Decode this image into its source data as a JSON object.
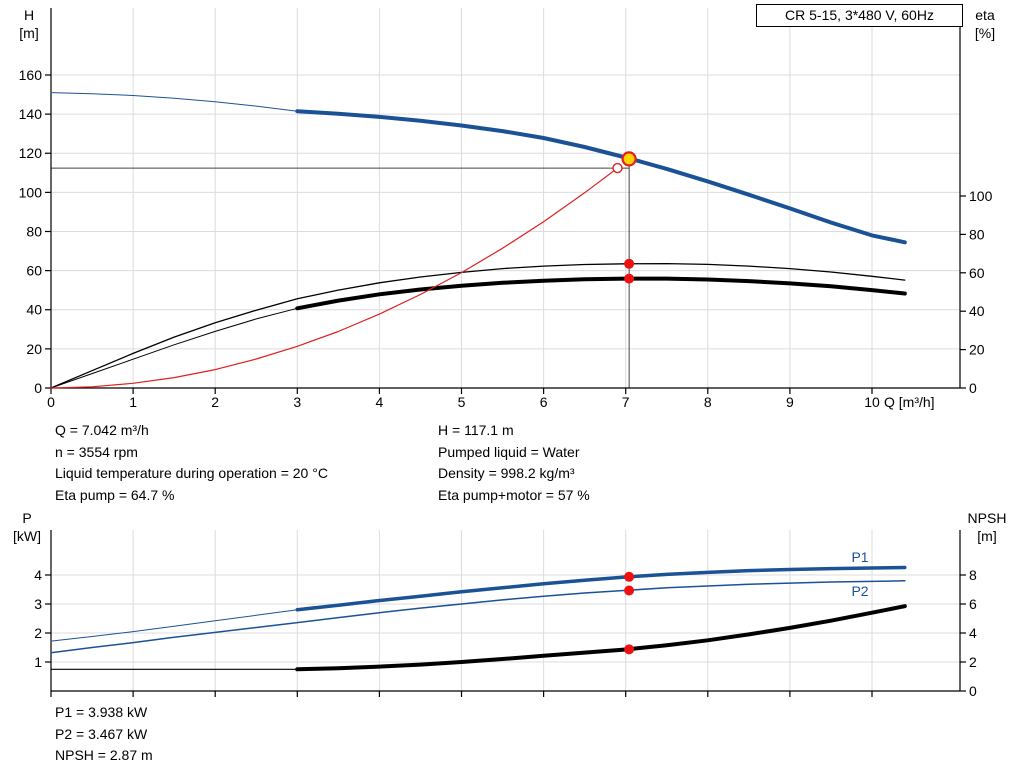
{
  "colors": {
    "blue": "#1b5296",
    "black": "#000000",
    "red": "#e02020",
    "marker_red": "#ee1111",
    "duty_fill": "#ffd400",
    "grid": "#dcdcdc",
    "axis": "#000000",
    "ref_line": "#444444"
  },
  "info": {
    "top_left": [
      "Q = 7.042 m³/h",
      "n = 3554 rpm",
      "Liquid temperature during operation = 20 °C",
      "Eta pump = 64.7 %"
    ],
    "top_right": [
      "H = 117.1 m",
      "Pumped liquid = Water",
      "Density = 998.2 kg/m³",
      "Eta pump+motor = 57 %"
    ],
    "bottom": [
      "P1 = 3.938 kW",
      "P2 = 3.467 kW",
      "NPSH = 2.87 m"
    ]
  },
  "chart_data": [
    {
      "type": "line",
      "title": "CR 5-15, 3*480 V, 60Hz",
      "x_axis": {
        "label": "Q [m³/h]",
        "min": 0,
        "max": 11.1,
        "ticks": [
          0,
          1,
          2,
          3,
          4,
          5,
          6,
          7,
          8,
          9,
          10
        ],
        "show_tick_labels": true
      },
      "y_left": {
        "label": [
          "H",
          "[m]"
        ],
        "min": 0,
        "max": 194,
        "ticks": [
          0,
          20,
          40,
          60,
          80,
          100,
          120,
          140,
          160
        ]
      },
      "y_right": {
        "label": [
          "eta",
          "[%]"
        ],
        "min": 0,
        "max": 198,
        "ticks": [
          0,
          20,
          40,
          60,
          80,
          100
        ]
      },
      "series": [
        {
          "name": "head-curve-lead-in",
          "axis": "left",
          "color": "blue",
          "width": 1,
          "points": [
            [
              0,
              151
            ],
            [
              0.5,
              150.4
            ],
            [
              1,
              149.5
            ],
            [
              1.5,
              148.1
            ],
            [
              2,
              146.3
            ],
            [
              2.5,
              144.1
            ],
            [
              3,
              141.5
            ]
          ]
        },
        {
          "name": "head-curve",
          "axis": "left",
          "color": "blue",
          "width": 4,
          "points": [
            [
              3,
              141.5
            ],
            [
              3.5,
              140.2
            ],
            [
              4,
              138.6
            ],
            [
              4.5,
              136.6
            ],
            [
              5,
              134.2
            ],
            [
              5.5,
              131.3
            ],
            [
              6,
              127.8
            ],
            [
              6.5,
              123.2
            ],
            [
              7,
              117.8
            ],
            [
              7.5,
              112
            ],
            [
              8,
              105.6
            ],
            [
              8.5,
              98.8
            ],
            [
              9,
              91.8
            ],
            [
              9.5,
              84.6
            ],
            [
              10,
              78
            ],
            [
              10.4,
              74.5
            ]
          ]
        },
        {
          "name": "eta-pump-curve",
          "axis": "right",
          "color": "black",
          "width": 1.3,
          "points": [
            [
              0,
              0
            ],
            [
              0.5,
              9
            ],
            [
              1,
              18
            ],
            [
              1.5,
              26.5
            ],
            [
              2,
              34
            ],
            [
              2.5,
              40.5
            ],
            [
              3,
              46.5
            ],
            [
              3.5,
              51
            ],
            [
              4,
              54.8
            ],
            [
              4.5,
              57.8
            ],
            [
              5,
              60.2
            ],
            [
              5.5,
              62.2
            ],
            [
              6,
              63.5
            ],
            [
              6.5,
              64.3
            ],
            [
              7,
              64.7
            ],
            [
              7.5,
              64.8
            ],
            [
              8,
              64.4
            ],
            [
              8.5,
              63.5
            ],
            [
              9,
              62.2
            ],
            [
              9.5,
              60.4
            ],
            [
              10,
              58.2
            ],
            [
              10.4,
              56.2
            ]
          ]
        },
        {
          "name": "eta-pump-motor-lead-in",
          "axis": "right",
          "color": "black",
          "width": 1,
          "points": [
            [
              0,
              0
            ],
            [
              0.5,
              7.5
            ],
            [
              1,
              15
            ],
            [
              1.5,
              22.5
            ],
            [
              2,
              29.5
            ],
            [
              2.5,
              36
            ],
            [
              3,
              41.5
            ]
          ]
        },
        {
          "name": "eta-pump-motor-curve",
          "axis": "right",
          "color": "black",
          "width": 4,
          "points": [
            [
              3,
              41.5
            ],
            [
              3.5,
              45.5
            ],
            [
              4,
              48.8
            ],
            [
              4.5,
              51.3
            ],
            [
              5,
              53.3
            ],
            [
              5.5,
              54.8
            ],
            [
              6,
              55.9
            ],
            [
              6.5,
              56.6
            ],
            [
              7,
              57
            ],
            [
              7.5,
              57
            ],
            [
              8,
              56.5
            ],
            [
              8.5,
              55.7
            ],
            [
              9,
              54.5
            ],
            [
              9.5,
              53
            ],
            [
              10,
              51
            ],
            [
              10.4,
              49.2
            ]
          ]
        },
        {
          "name": "system-curve",
          "axis": "left",
          "color": "red",
          "width": 1.2,
          "points": [
            [
              0,
              0
            ],
            [
              0.5,
              0.6
            ],
            [
              1,
              2.4
            ],
            [
              1.5,
              5.3
            ],
            [
              2,
              9.4
            ],
            [
              2.5,
              14.8
            ],
            [
              3,
              21.3
            ],
            [
              3.5,
              28.9
            ],
            [
              4,
              37.8
            ],
            [
              4.5,
              47.8
            ],
            [
              5,
              59
            ],
            [
              5.5,
              71.4
            ],
            [
              6,
              85
            ],
            [
              6.5,
              99.8
            ],
            [
              6.9,
              112.4
            ]
          ]
        }
      ],
      "ref_lines": [
        {
          "name": "head-reference-line",
          "type": "h",
          "axis": "left",
          "y": 112.4,
          "x1": 0,
          "x2": 7.042
        },
        {
          "name": "flow-reference-line",
          "type": "v",
          "axis": "left",
          "x": 7.042,
          "y1": 0,
          "y2": 117.1
        }
      ],
      "markers": [
        {
          "name": "system-curve-endpoint",
          "type": "open",
          "axis": "left",
          "x": 6.9,
          "y": 112.4
        },
        {
          "name": "duty-point",
          "type": "duty",
          "axis": "left",
          "x": 7.042,
          "y": 117.1
        },
        {
          "name": "eta-pump-point",
          "type": "dot",
          "axis": "right",
          "x": 7.042,
          "y": 64.7
        },
        {
          "name": "eta-pump-motor-point",
          "type": "dot",
          "axis": "right",
          "x": 7.042,
          "y": 57
        }
      ],
      "labels": []
    },
    {
      "type": "line",
      "x_axis": {
        "min": 0,
        "max": 11.1,
        "ticks": [
          0,
          1,
          2,
          3,
          4,
          5,
          6,
          7,
          8,
          9,
          10
        ],
        "show_tick_labels": false
      },
      "y_left": {
        "label": [
          "P",
          "[kW]"
        ],
        "min": 0,
        "max": 5.55,
        "ticks": [
          1,
          2,
          3,
          4
        ]
      },
      "y_right": {
        "label": [
          "NPSH",
          "[m]"
        ],
        "min": 0,
        "max": 11.1,
        "ticks": [
          0,
          2,
          4,
          6,
          8
        ]
      },
      "series": [
        {
          "name": "p1-curve-lead-in",
          "axis": "left",
          "color": "blue",
          "width": 1,
          "points": [
            [
              0,
              1.72
            ],
            [
              0.5,
              1.88
            ],
            [
              1,
              2.05
            ],
            [
              1.5,
              2.23
            ],
            [
              2,
              2.42
            ],
            [
              2.5,
              2.61
            ],
            [
              3,
              2.8
            ]
          ]
        },
        {
          "name": "p1-curve",
          "axis": "left",
          "color": "blue",
          "width": 3.5,
          "points": [
            [
              3,
              2.8
            ],
            [
              3.5,
              2.96
            ],
            [
              4,
              3.12
            ],
            [
              4.5,
              3.27
            ],
            [
              5,
              3.42
            ],
            [
              5.5,
              3.56
            ],
            [
              6,
              3.7
            ],
            [
              6.5,
              3.82
            ],
            [
              7,
              3.93
            ],
            [
              7.5,
              4.02
            ],
            [
              8,
              4.09
            ],
            [
              8.5,
              4.15
            ],
            [
              9,
              4.19
            ],
            [
              9.5,
              4.22
            ],
            [
              10,
              4.24
            ],
            [
              10.4,
              4.26
            ]
          ]
        },
        {
          "name": "p2-curve",
          "axis": "left",
          "color": "blue",
          "width": 1.5,
          "points": [
            [
              0,
              1.32
            ],
            [
              0.5,
              1.5
            ],
            [
              1,
              1.67
            ],
            [
              1.5,
              1.85
            ],
            [
              2,
              2.02
            ],
            [
              2.5,
              2.19
            ],
            [
              3,
              2.36
            ],
            [
              3.5,
              2.53
            ],
            [
              4,
              2.7
            ],
            [
              4.5,
              2.86
            ],
            [
              5,
              3.0
            ],
            [
              5.5,
              3.14
            ],
            [
              6,
              3.27
            ],
            [
              6.5,
              3.38
            ],
            [
              7,
              3.47
            ],
            [
              7.5,
              3.56
            ],
            [
              8,
              3.62
            ],
            [
              8.5,
              3.68
            ],
            [
              9,
              3.72
            ],
            [
              9.5,
              3.76
            ],
            [
              10,
              3.78
            ],
            [
              10.4,
              3.8
            ]
          ]
        },
        {
          "name": "npsh-curve-lead-in",
          "axis": "right",
          "color": "black",
          "width": 1.2,
          "points": [
            [
              0,
              1.5
            ],
            [
              3,
              1.5
            ]
          ]
        },
        {
          "name": "npsh-curve",
          "axis": "right",
          "color": "black",
          "width": 4,
          "points": [
            [
              3,
              1.5
            ],
            [
              3.5,
              1.57
            ],
            [
              4,
              1.68
            ],
            [
              4.5,
              1.82
            ],
            [
              5,
              2.0
            ],
            [
              5.5,
              2.21
            ],
            [
              6,
              2.43
            ],
            [
              6.5,
              2.65
            ],
            [
              7,
              2.86
            ],
            [
              7.5,
              3.15
            ],
            [
              8,
              3.5
            ],
            [
              8.5,
              3.9
            ],
            [
              9,
              4.35
            ],
            [
              9.5,
              4.85
            ],
            [
              10,
              5.4
            ],
            [
              10.4,
              5.85
            ]
          ]
        }
      ],
      "ref_lines": [],
      "markers": [
        {
          "name": "p1-point",
          "type": "dot",
          "axis": "left",
          "x": 7.042,
          "y": 3.938
        },
        {
          "name": "p2-point",
          "type": "dot",
          "axis": "left",
          "x": 7.042,
          "y": 3.467
        },
        {
          "name": "npsh-point",
          "type": "dot",
          "axis": "right",
          "x": 7.042,
          "y": 2.87
        }
      ],
      "labels": [
        {
          "name": "p1-label",
          "text": "P1",
          "axis": "left",
          "x": 9.75,
          "y": 4.45,
          "color": "blue"
        },
        {
          "name": "p2-label",
          "text": "P2",
          "axis": "left",
          "x": 9.75,
          "y": 3.28,
          "color": "blue"
        }
      ]
    }
  ]
}
